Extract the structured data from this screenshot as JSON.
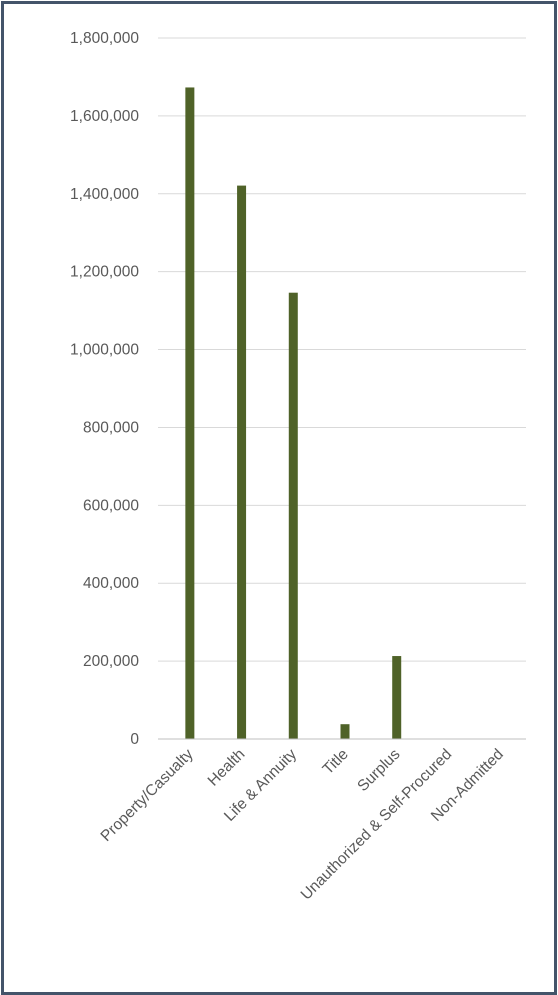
{
  "chart_data": {
    "type": "bar",
    "title": "",
    "xlabel": "",
    "ylabel": "",
    "categories": [
      "Property/Casualty",
      "Health",
      "Life & Annuity",
      "Title",
      "Surplus",
      "Unauthorized & Self-Procured",
      "Non-Admitted"
    ],
    "values": [
      1673000,
      1421000,
      1146000,
      38000,
      213000,
      0,
      0
    ],
    "ylim": [
      0,
      1800000
    ],
    "yticks": [
      "0",
      "200,000",
      "400,000",
      "600,000",
      "800,000",
      "1,000,000",
      "1,200,000",
      "1,400,000",
      "1,600,000",
      "1,800,000"
    ],
    "ytick_values": [
      0,
      200000,
      400000,
      600000,
      800000,
      1000000,
      1200000,
      1400000,
      1600000,
      1800000
    ],
    "grid": true,
    "legend": "none",
    "bar_color": "#4f6228",
    "grid_color": "#d9d9d9",
    "axis_color": "#bfbfbf"
  }
}
